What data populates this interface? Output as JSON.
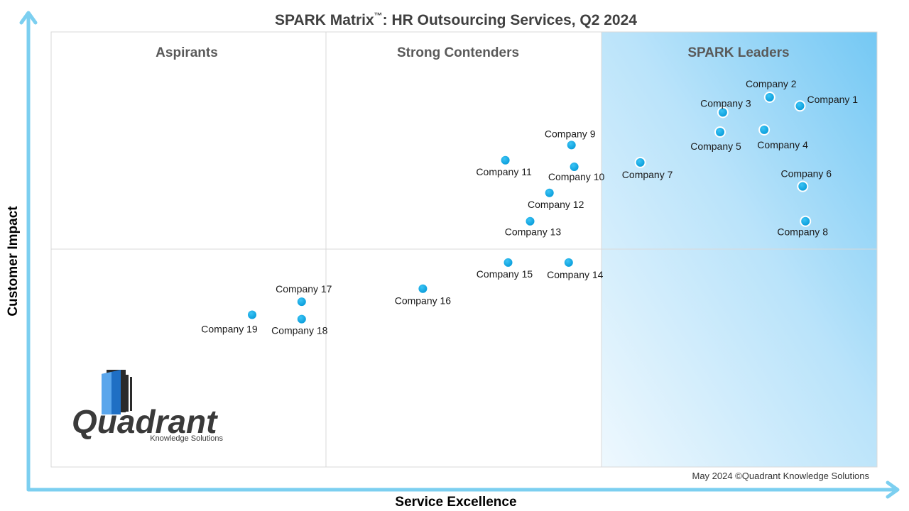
{
  "chart_data": {
    "type": "scatter",
    "title": "SPARK Matrix",
    "title_tm": "™",
    "title_rest": ": HR Outsourcing Services, Q2 2024",
    "xlabel": "Service Excellence",
    "ylabel": "Customer Impact",
    "xlim": [
      0,
      3
    ],
    "ylim": [
      0,
      2
    ],
    "grid": true,
    "quadrants": [
      "Aspirants",
      "Strong Contenders",
      "SPARK Leaders"
    ],
    "points": [
      {
        "name": "Company 1",
        "x": 2.72,
        "y": 1.66
      },
      {
        "name": "Company 2",
        "x": 2.61,
        "y": 1.7
      },
      {
        "name": "Company 3",
        "x": 2.44,
        "y": 1.63
      },
      {
        "name": "Company 4",
        "x": 2.59,
        "y": 1.55
      },
      {
        "name": "Company 5",
        "x": 2.43,
        "y": 1.54
      },
      {
        "name": "Company 6",
        "x": 2.73,
        "y": 1.29
      },
      {
        "name": "Company 7",
        "x": 2.14,
        "y": 1.4
      },
      {
        "name": "Company 8",
        "x": 2.74,
        "y": 1.13
      },
      {
        "name": "Company 9",
        "x": 1.89,
        "y": 1.48
      },
      {
        "name": "Company 10",
        "x": 1.9,
        "y": 1.38
      },
      {
        "name": "Company 11",
        "x": 1.65,
        "y": 1.41
      },
      {
        "name": "Company 12",
        "x": 1.81,
        "y": 1.26
      },
      {
        "name": "Company 13",
        "x": 1.74,
        "y": 1.13
      },
      {
        "name": "Company 14",
        "x": 1.88,
        "y": 0.94
      },
      {
        "name": "Company 15",
        "x": 1.66,
        "y": 0.94
      },
      {
        "name": "Company 16",
        "x": 1.35,
        "y": 0.82
      },
      {
        "name": "Company 17",
        "x": 0.91,
        "y": 0.76
      },
      {
        "name": "Company 18",
        "x": 0.91,
        "y": 0.68
      },
      {
        "name": "Company 19",
        "x": 0.73,
        "y": 0.7
      }
    ]
  },
  "logo": {
    "name": "Quadrant",
    "tagline": "Knowledge Solutions"
  },
  "credit": "May 2024 ©Quadrant Knowledge Solutions",
  "colors": {
    "axis_arrow": "#7ccff0",
    "point": "#00a8e8",
    "grid": "#d9d9d9",
    "leader_gradient_start": "#e8f6fd",
    "leader_gradient_end": "#7fcdf5"
  }
}
